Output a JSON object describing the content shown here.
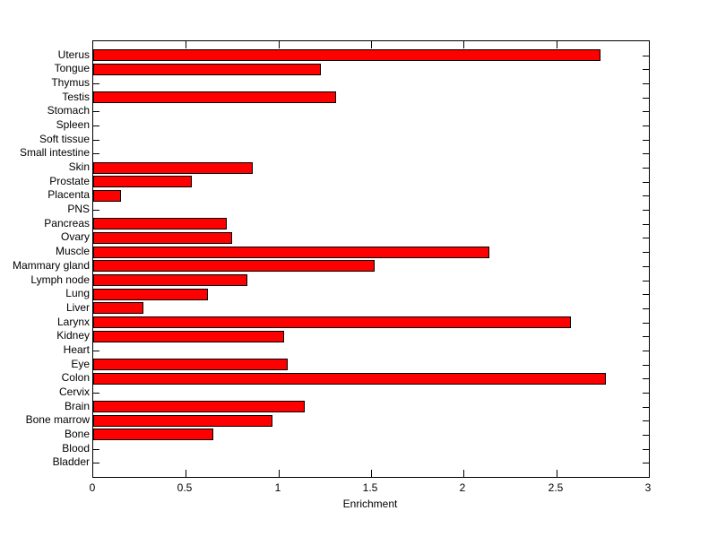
{
  "figure": {
    "background_color": "#ffffff",
    "bar_fill_color": "#ff0000",
    "bar_edge_color": "#000000",
    "axis_color": "#000000",
    "text_color": "#000000"
  },
  "chart_data": {
    "type": "bar",
    "orientation": "horizontal",
    "title": "",
    "xlabel": "Enrichment",
    "ylabel": "",
    "xlim": [
      0,
      3
    ],
    "grid": false,
    "legend": null,
    "xticks": [
      0,
      0.5,
      1,
      1.5,
      2,
      2.5,
      3
    ],
    "xtick_labels": [
      "0",
      "0.5",
      "1",
      "1.5",
      "2",
      "2.5",
      "3"
    ],
    "categories_top_to_bottom": [
      "Uterus",
      "Tongue",
      "Thymus",
      "Testis",
      "Stomach",
      "Spleen",
      "Soft tissue",
      "Small intestine",
      "Skin",
      "Prostate",
      "Placenta",
      "PNS",
      "Pancreas",
      "Ovary",
      "Muscle",
      "Mammary gland",
      "Lymph node",
      "Lung",
      "Liver",
      "Larynx",
      "Kidney",
      "Heart",
      "Eye",
      "Colon",
      "Cervix",
      "Brain",
      "Bone marrow",
      "Bone",
      "Blood",
      "Bladder"
    ],
    "values": [
      2.74,
      1.23,
      0,
      1.31,
      0,
      0,
      0,
      0,
      0.86,
      0.53,
      0.15,
      0,
      0.72,
      0.75,
      2.14,
      1.52,
      0.83,
      0.62,
      0.27,
      2.58,
      1.03,
      0,
      1.05,
      2.77,
      0,
      1.14,
      0.97,
      0.65,
      0,
      0
    ]
  }
}
